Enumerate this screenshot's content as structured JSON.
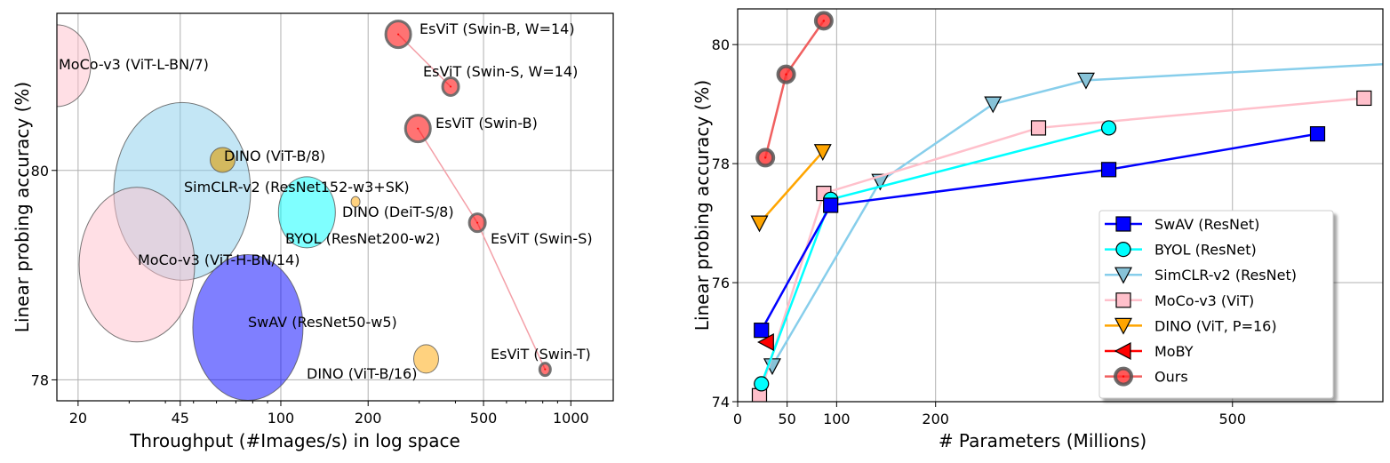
{
  "chart_data": [
    {
      "type": "scatter",
      "subtype": "bubble",
      "xlabel": "Throughput (#Images/s) in log space",
      "ylabel": "Linear probing accuracy (%)",
      "xscale": "log",
      "xlim": [
        16.9,
        1400
      ],
      "ylim": [
        77.8,
        81.5
      ],
      "xticks": [
        20,
        45,
        100,
        200,
        500,
        1000
      ],
      "xtick_labels": [
        "20",
        "45",
        "100",
        "200",
        "500",
        "1000"
      ],
      "yticks": [
        78,
        80
      ],
      "ytick_labels": [
        "78",
        "80"
      ],
      "grid": true,
      "points": [
        {
          "label": "MoCo-v3 (ViT-L-BN/7)",
          "x": 16.9,
          "y": 81.0,
          "color": "#ffc0cb"
        },
        {
          "label": "SimCLR-v2 (ResNet152-w3+SK)",
          "x": 45.7,
          "y": 79.8,
          "color": "#87ceeb"
        },
        {
          "label": "MoCo-v3 (ViT-H-BN/14)",
          "x": 31.9,
          "y": 79.1,
          "color": "#ffc0cb"
        },
        {
          "label": "SwAV (ResNet50-w5)",
          "x": 77,
          "y": 78.5,
          "color": "#0000ff"
        },
        {
          "label": "BYOL (ResNet200-w2)",
          "x": 123,
          "y": 79.6,
          "color": "#00ffff"
        },
        {
          "label": "DINO (ViT-B/8)",
          "x": 63,
          "y": 80.1,
          "color": "#daa520"
        },
        {
          "label": "DINO (DeiT-S/8)",
          "x": 181,
          "y": 79.7,
          "color": "#ffa500"
        },
        {
          "label": "DINO (ViT-B/16)",
          "x": 317,
          "y": 78.2,
          "color": "#ffa500"
        },
        {
          "label": "EsViT (Swin-B, W=14)",
          "x": 254,
          "y": 81.3,
          "color": "#ff0000"
        },
        {
          "label": "EsViT (Swin-S, W=14)",
          "x": 385,
          "y": 80.8,
          "color": "#ff0000"
        },
        {
          "label": "EsViT (Swin-B)",
          "x": 297,
          "y": 80.4,
          "color": "#ff0000"
        },
        {
          "label": "EsViT (Swin-S)",
          "x": 476,
          "y": 79.5,
          "color": "#ff0000"
        },
        {
          "label": "EsViT (Swin-T)",
          "x": 815,
          "y": 78.1,
          "color": "#ff0000"
        }
      ]
    },
    {
      "type": "line",
      "xlabel": "# Parameters (Millions)",
      "ylabel": "Linear probing accuracy (%)",
      "xlim": [
        0,
        652
      ],
      "ylim": [
        74,
        80.6
      ],
      "xticks": [
        0,
        50,
        100,
        200,
        500
      ],
      "xtick_labels": [
        "0",
        "50",
        "100",
        "200",
        "500"
      ],
      "yticks": [
        74,
        76,
        78,
        80
      ],
      "ytick_labels": [
        "74",
        "76",
        "78",
        "80"
      ],
      "grid": true,
      "legend_position": "lower-right",
      "series": [
        {
          "name": "SwAV (ResNet)",
          "color": "#0000ff",
          "marker": "square",
          "marker_color": "#0000ff",
          "x": [
            24,
            94,
            375,
            586
          ],
          "y": [
            75.2,
            77.3,
            77.9,
            78.5
          ]
        },
        {
          "name": "BYOL (ResNet)",
          "color": "#00ffff",
          "marker": "circle",
          "marker_color": "#00ffff",
          "x": [
            24,
            94,
            375
          ],
          "y": [
            74.3,
            77.4,
            78.6
          ]
        },
        {
          "name": "SimCLR-v2 (ResNet)",
          "color": "#87ceeb",
          "marker": "triangle-down",
          "marker_color": "#87c3d8",
          "x": [
            35,
            144,
            258,
            352,
            795
          ],
          "y": [
            74.6,
            77.7,
            79.0,
            79.4,
            79.8
          ]
        },
        {
          "name": "MoCo-v3 (ViT)",
          "color": "#ffc0cb",
          "marker": "square",
          "marker_color": "#ffc0cb",
          "x": [
            22,
            87,
            304,
            633
          ],
          "y": [
            74.1,
            77.5,
            78.6,
            79.1
          ]
        },
        {
          "name": "DINO (ViT, P=16)",
          "color": "#ffa500",
          "marker": "triangle-down",
          "marker_color": "#ffa500",
          "x": [
            22,
            86
          ],
          "y": [
            77.0,
            78.2
          ]
        },
        {
          "name": "MoBY",
          "color": "#ff0000",
          "marker": "triangle-left",
          "marker_color": "#ff0000",
          "x": [
            29
          ],
          "y": [
            75.0
          ]
        },
        {
          "name": "Ours",
          "color": "#f06060",
          "marker": "circle-ours",
          "marker_color": "#ff3030",
          "x": [
            28,
            49,
            87
          ],
          "y": [
            78.1,
            79.5,
            80.4
          ]
        }
      ]
    }
  ]
}
